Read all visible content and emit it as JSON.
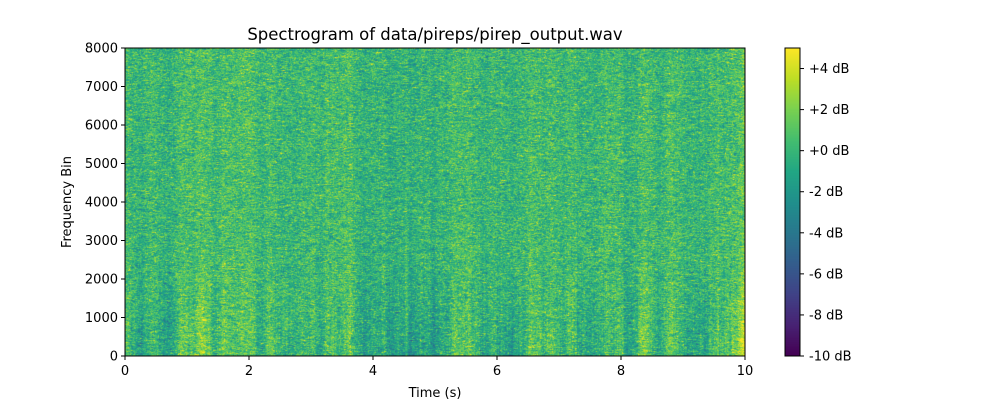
{
  "chart_data": {
    "type": "heatmap",
    "title": "Spectrogram of data/pireps/pirep_output.wav",
    "xlabel": "Time (s)",
    "ylabel": "Frequency Bin",
    "xlim": [
      0,
      10
    ],
    "ylim": [
      0,
      8000
    ],
    "x_ticks": [
      0,
      2,
      4,
      6,
      8,
      10
    ],
    "x_tick_labels": [
      "0",
      "2",
      "4",
      "6",
      "8",
      "10"
    ],
    "y_ticks": [
      0,
      1000,
      2000,
      3000,
      4000,
      5000,
      6000,
      7000,
      8000
    ],
    "y_tick_labels": [
      "0",
      "1000",
      "2000",
      "3000",
      "4000",
      "5000",
      "6000",
      "7000",
      "8000"
    ],
    "colormap": "viridis",
    "colorbar": {
      "range": [
        -10,
        5
      ],
      "ticks": [
        -10,
        -8,
        -6,
        -4,
        -2,
        0,
        2,
        4
      ],
      "tick_labels": [
        "-10 dB",
        "-8 dB",
        "-6 dB",
        "-4 dB",
        "-2 dB",
        "+0 dB",
        "+2 dB",
        "+4 dB"
      ]
    },
    "grid": false,
    "value_estimate_db": {
      "typical": [
        -2,
        2
      ],
      "low_frequency_darker_patches": [
        -4,
        -2
      ]
    }
  }
}
